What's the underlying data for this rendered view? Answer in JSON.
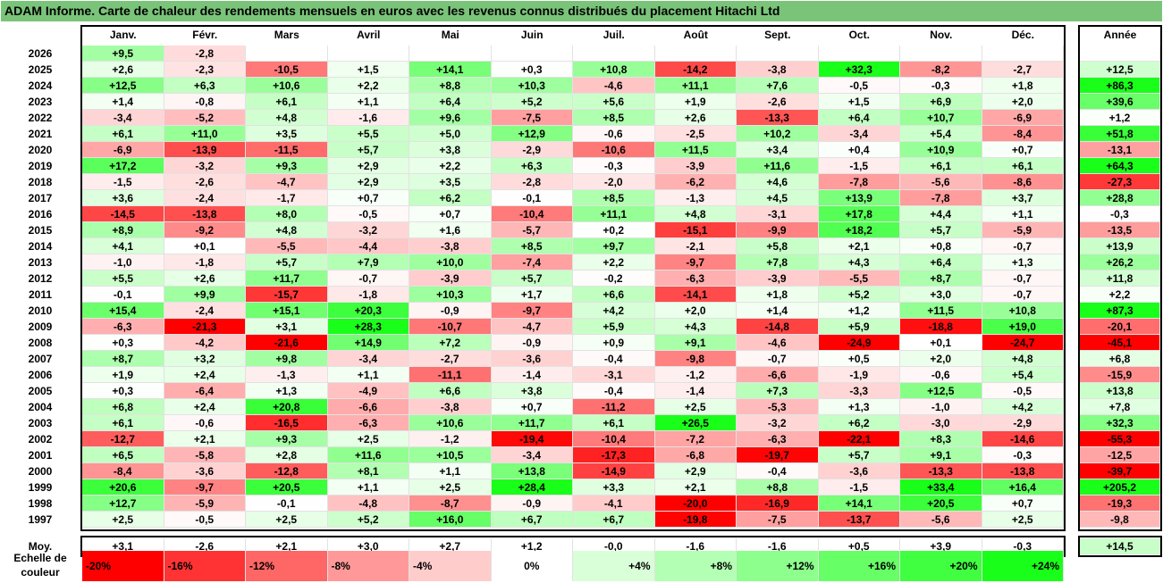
{
  "title": "ADAM Informe. Carte de chaleur des rendements mensuels en euros avec les revenus connus distribués du placement Hitachi Ltd",
  "chart_data": {
    "type": "heatmap",
    "columns": [
      "Janv.",
      "Févr.",
      "Mars",
      "Avril",
      "Mai",
      "Juin",
      "Juil.",
      "Août",
      "Sept.",
      "Oct.",
      "Nov.",
      "Déc."
    ],
    "year_header": "Année",
    "rows": [
      {
        "year": "2026",
        "months": [
          "+9,5",
          "-2,8",
          "",
          "",
          "",
          "",
          "",
          "",
          "",
          "",
          "",
          ""
        ],
        "annual": ""
      },
      {
        "year": "2025",
        "months": [
          "+2,6",
          "-2,3",
          "-10,5",
          "+1,5",
          "+14,1",
          "+0,3",
          "+10,8",
          "-14,2",
          "-3,8",
          "+32,3",
          "-8,2",
          "-2,7"
        ],
        "annual": "+12,5"
      },
      {
        "year": "2024",
        "months": [
          "+12,5",
          "+6,3",
          "+10,6",
          "+2,2",
          "+8,8",
          "+10,3",
          "-4,6",
          "+11,1",
          "+7,6",
          "-0,5",
          "-0,3",
          "+1,8"
        ],
        "annual": "+86,3"
      },
      {
        "year": "2023",
        "months": [
          "+1,4",
          "-0,8",
          "+6,1",
          "+1,1",
          "+6,4",
          "+5,2",
          "+5,6",
          "+1,9",
          "-2,6",
          "+1,5",
          "+6,9",
          "+2,0"
        ],
        "annual": "+39,6"
      },
      {
        "year": "2022",
        "months": [
          "-3,4",
          "-5,2",
          "+4,8",
          "-1,6",
          "+9,6",
          "-7,5",
          "+8,5",
          "+2,6",
          "-13,3",
          "+6,4",
          "+10,7",
          "-6,9"
        ],
        "annual": "+1,2"
      },
      {
        "year": "2021",
        "months": [
          "+6,1",
          "+11,0",
          "+3,5",
          "+5,5",
          "+5,0",
          "+12,9",
          "-0,6",
          "-2,5",
          "+10,2",
          "-3,4",
          "+5,4",
          "-8,4"
        ],
        "annual": "+51,8"
      },
      {
        "year": "2020",
        "months": [
          "-6,9",
          "-13,9",
          "-11,5",
          "+5,7",
          "+3,8",
          "-2,9",
          "-10,6",
          "+11,5",
          "+3,4",
          "+0,4",
          "+10,9",
          "+0,7"
        ],
        "annual": "-13,1"
      },
      {
        "year": "2019",
        "months": [
          "+17,2",
          "-3,2",
          "+9,3",
          "+2,9",
          "+2,2",
          "+6,3",
          "-0,3",
          "-3,9",
          "+11,6",
          "-1,5",
          "+6,1",
          "+6,1"
        ],
        "annual": "+64,3"
      },
      {
        "year": "2018",
        "months": [
          "-1,5",
          "-2,6",
          "-4,7",
          "+2,9",
          "+3,5",
          "-2,8",
          "-2,0",
          "-6,2",
          "+4,6",
          "-7,8",
          "-5,6",
          "-8,6"
        ],
        "annual": "-27,3"
      },
      {
        "year": "2017",
        "months": [
          "+3,6",
          "-2,4",
          "-1,7",
          "+0,7",
          "+6,2",
          "-0,1",
          "+8,5",
          "-1,3",
          "+4,5",
          "+13,9",
          "-7,8",
          "+3,7"
        ],
        "annual": "+28,8"
      },
      {
        "year": "2016",
        "months": [
          "-14,5",
          "-13,8",
          "+8,0",
          "-0,5",
          "+0,7",
          "-10,4",
          "+11,1",
          "+4,8",
          "-3,1",
          "+17,8",
          "+4,4",
          "+1,1"
        ],
        "annual": "-0,3"
      },
      {
        "year": "2015",
        "months": [
          "+8,9",
          "-9,2",
          "+4,8",
          "-3,2",
          "+1,6",
          "-5,7",
          "+0,2",
          "-15,1",
          "-9,9",
          "+18,2",
          "+5,7",
          "-5,9"
        ],
        "annual": "-13,5"
      },
      {
        "year": "2014",
        "months": [
          "+4,1",
          "+0,1",
          "-5,5",
          "-4,4",
          "-3,8",
          "+8,5",
          "+9,7",
          "-2,1",
          "+5,8",
          "+2,1",
          "+0,8",
          "-0,7"
        ],
        "annual": "+13,9"
      },
      {
        "year": "2013",
        "months": [
          "-1,0",
          "-1,8",
          "+5,7",
          "+7,9",
          "+10,0",
          "-7,4",
          "+2,2",
          "-9,7",
          "+7,8",
          "+4,3",
          "+6,4",
          "+1,3"
        ],
        "annual": "+26,2"
      },
      {
        "year": "2012",
        "months": [
          "+5,5",
          "+2,6",
          "+11,7",
          "-0,7",
          "-3,9",
          "+5,7",
          "-0,2",
          "-6,3",
          "-3,9",
          "-5,5",
          "+8,7",
          "-0,7"
        ],
        "annual": "+11,8"
      },
      {
        "year": "2011",
        "months": [
          "-0,1",
          "+9,9",
          "-15,7",
          "-1,8",
          "+10,3",
          "+1,7",
          "+6,6",
          "-14,1",
          "+1,8",
          "+5,2",
          "+3,0",
          "-0,7"
        ],
        "annual": "+2,2"
      },
      {
        "year": "2010",
        "months": [
          "+15,4",
          "-2,4",
          "+15,1",
          "+20,3",
          "-0,9",
          "-9,7",
          "+4,2",
          "+2,0",
          "+1,4",
          "+1,2",
          "+11,5",
          "+10,8"
        ],
        "annual": "+87,3"
      },
      {
        "year": "2009",
        "months": [
          "-6,3",
          "-21,3",
          "+3,1",
          "+28,3",
          "-10,7",
          "-4,7",
          "+5,9",
          "+4,3",
          "-14,8",
          "+5,9",
          "-18,8",
          "+19,0"
        ],
        "annual": "-20,1"
      },
      {
        "year": "2008",
        "months": [
          "+0,3",
          "-4,2",
          "-21,6",
          "+14,9",
          "+7,2",
          "-0,9",
          "+0,9",
          "+9,1",
          "-4,6",
          "-24,9",
          "+0,1",
          "-24,7"
        ],
        "annual": "-45,1"
      },
      {
        "year": "2007",
        "months": [
          "+8,7",
          "+3,2",
          "+9,8",
          "-3,4",
          "-2,7",
          "-3,6",
          "-0,4",
          "-9,8",
          "-0,7",
          "+0,5",
          "+2,0",
          "+4,8"
        ],
        "annual": "+6,8"
      },
      {
        "year": "2006",
        "months": [
          "+1,9",
          "+2,4",
          "-1,3",
          "+1,1",
          "-11,1",
          "-1,4",
          "-3,1",
          "-1,2",
          "-6,6",
          "-1,9",
          "-0,6",
          "+5,4"
        ],
        "annual": "-15,9"
      },
      {
        "year": "2005",
        "months": [
          "+0,3",
          "-6,4",
          "+1,3",
          "-4,9",
          "+6,6",
          "+3,8",
          "-0,4",
          "-1,4",
          "+7,3",
          "-3,3",
          "+12,5",
          "-0,5"
        ],
        "annual": "+13,8"
      },
      {
        "year": "2004",
        "months": [
          "+6,8",
          "+2,4",
          "+20,8",
          "-6,6",
          "-3,8",
          "+0,7",
          "-11,2",
          "+2,5",
          "-5,3",
          "+1,3",
          "-1,0",
          "+4,2"
        ],
        "annual": "+7,8"
      },
      {
        "year": "2003",
        "months": [
          "+6,1",
          "-0,6",
          "-16,5",
          "-6,3",
          "+10,6",
          "+11,7",
          "+6,1",
          "+26,5",
          "-3,2",
          "+6,2",
          "-3,0",
          "-2,9"
        ],
        "annual": "+32,3"
      },
      {
        "year": "2002",
        "months": [
          "-12,7",
          "+2,1",
          "+9,3",
          "+2,5",
          "-1,2",
          "-19,4",
          "-10,4",
          "-7,2",
          "-6,3",
          "-22,1",
          "+8,3",
          "-14,6"
        ],
        "annual": "-55,3"
      },
      {
        "year": "2001",
        "months": [
          "+6,5",
          "-5,8",
          "+2,8",
          "+11,6",
          "+10,5",
          "-3,4",
          "-17,3",
          "-6,8",
          "-19,7",
          "+5,7",
          "+9,1",
          "-0,3"
        ],
        "annual": "-12,5"
      },
      {
        "year": "2000",
        "months": [
          "-8,4",
          "-3,6",
          "-12,8",
          "+8,1",
          "+1,1",
          "+13,8",
          "-14,9",
          "+2,9",
          "-0,4",
          "-3,6",
          "-13,3",
          "-13,8"
        ],
        "annual": "-39,7"
      },
      {
        "year": "1999",
        "months": [
          "+20,6",
          "-9,7",
          "+20,5",
          "+1,1",
          "+2,5",
          "+28,4",
          "+3,3",
          "+2,1",
          "+8,8",
          "-1,5",
          "+33,4",
          "+16,4"
        ],
        "annual": "+205,2"
      },
      {
        "year": "1998",
        "months": [
          "+12,7",
          "-5,9",
          "-0,1",
          "-4,8",
          "-8,7",
          "-0,9",
          "-4,1",
          "-20,0",
          "-16,9",
          "+14,1",
          "+20,5",
          "+0,7"
        ],
        "annual": "-19,3"
      },
      {
        "year": "1997",
        "months": [
          "+2,5",
          "-0,5",
          "+2,5",
          "+5,2",
          "+16,0",
          "+6,7",
          "+6,7",
          "-19,8",
          "-7,5",
          "-13,7",
          "-5,6",
          "+2,5"
        ],
        "annual": "-9,8"
      }
    ],
    "average": {
      "label": "Moy.",
      "months": [
        "+3,1",
        "-2,6",
        "+2,1",
        "+3,0",
        "+2,7",
        "+1,2",
        "-0,0",
        "-1,6",
        "-1,6",
        "+0,5",
        "+3,9",
        "-0,3"
      ],
      "annual": "+14,5"
    },
    "color_scale": {
      "label_line1": "Echelle de",
      "label_line2": "couleur",
      "stops": [
        "-20%",
        "-16%",
        "-12%",
        "-8%",
        "-4%",
        "0%",
        "+4%",
        "+8%",
        "+12%",
        "+16%",
        "+20%",
        "+24%"
      ],
      "negative_color": "#ff0000",
      "neutral_color": "#ffffff",
      "positive_color": "#00ff00"
    }
  }
}
